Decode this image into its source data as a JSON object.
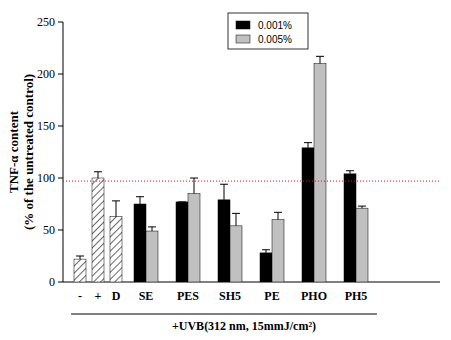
{
  "chart_data": {
    "type": "bar",
    "y_label": [
      "TNF-α content",
      "(% of the untreated control)"
    ],
    "x_label": "+UVB(312 nm, 15mmJ/cm²)",
    "categories": [
      "-",
      "+",
      "D",
      "SE",
      "PES",
      "SH5",
      "PE",
      "PHO",
      "PH5"
    ],
    "series": [
      {
        "color": "#ffffff",
        "marker": "hatch",
        "values": [
          22,
          100,
          63,
          null,
          null,
          null,
          null,
          null,
          null
        ],
        "errors": [
          3,
          6,
          15,
          null,
          null,
          null,
          null,
          null,
          null
        ]
      },
      {
        "name": "0.001%",
        "color": "#000000",
        "values": [
          null,
          null,
          null,
          75,
          77,
          79,
          28,
          129,
          104
        ],
        "errors": [
          null,
          null,
          null,
          7,
          0,
          15,
          3,
          5,
          3
        ]
      },
      {
        "name": "0.005%",
        "color": "#c0c0c0",
        "values": [
          null,
          null,
          null,
          49,
          85,
          54,
          60,
          210,
          71
        ],
        "errors": [
          null,
          null,
          null,
          4,
          15,
          12,
          7,
          7,
          2
        ]
      }
    ],
    "ylim": [
      0,
      250
    ],
    "yticks": [
      0,
      50,
      100,
      150,
      200,
      250
    ],
    "reference_line": 97,
    "grid": false,
    "legend": "top"
  }
}
